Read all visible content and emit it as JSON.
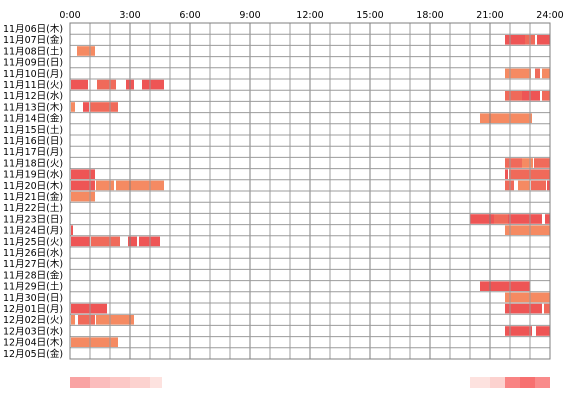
{
  "chart_data": {
    "type": "heatmap",
    "title": "",
    "x_unit": "hours",
    "x_range": [
      0,
      24
    ],
    "x_tick_labels": [
      "0:00",
      "3:00",
      "6:00",
      "9:00",
      "12:00",
      "15:00",
      "18:00",
      "21:00",
      "24:00"
    ],
    "grid": true,
    "rows": [
      {
        "label": "11月06日(木)",
        "segments": []
      },
      {
        "label": "11月07日(金)",
        "segments": [
          [
            21.75,
            22.75,
            "#ee5555"
          ],
          [
            22.75,
            23.25,
            "#f06a5a"
          ],
          [
            23.35,
            24.0,
            "#ee5555"
          ]
        ]
      },
      {
        "label": "11月08日(土)",
        "segments": [
          [
            0.35,
            1.25,
            "#f58a62"
          ]
        ]
      },
      {
        "label": "11月09日(日)",
        "segments": []
      },
      {
        "label": "11月10日(月)",
        "segments": [
          [
            21.75,
            23.05,
            "#f58a62"
          ],
          [
            23.25,
            23.5,
            "#f06a5a"
          ],
          [
            23.6,
            24.0,
            "#f58a62"
          ]
        ]
      },
      {
        "label": "11月11日(火)",
        "segments": [
          [
            0.05,
            0.9,
            "#ee5555"
          ],
          [
            1.35,
            2.3,
            "#f06a5a"
          ],
          [
            2.8,
            3.2,
            "#ee5555"
          ],
          [
            3.6,
            4.7,
            "#ee5555"
          ]
        ]
      },
      {
        "label": "11月12日(水)",
        "segments": [
          [
            21.75,
            22.6,
            "#f06a5a"
          ],
          [
            22.6,
            23.5,
            "#ee5555"
          ],
          [
            23.6,
            24.0,
            "#f06a5a"
          ]
        ]
      },
      {
        "label": "11月13日(木)",
        "segments": [
          [
            0.05,
            0.25,
            "#f58a62"
          ],
          [
            0.65,
            0.95,
            "#ee5555"
          ],
          [
            1.0,
            2.4,
            "#f06a5a"
          ]
        ]
      },
      {
        "label": "11月14日(金)",
        "segments": [
          [
            20.5,
            23.1,
            "#f58a62"
          ]
        ]
      },
      {
        "label": "11月15日(土)",
        "segments": []
      },
      {
        "label": "11月16日(日)",
        "segments": []
      },
      {
        "label": "11月17日(月)",
        "segments": []
      },
      {
        "label": "11月18日(火)",
        "segments": [
          [
            21.75,
            22.6,
            "#f06a5a"
          ],
          [
            22.6,
            23.15,
            "#f58a62"
          ],
          [
            23.2,
            24.0,
            "#f06a5a"
          ]
        ]
      },
      {
        "label": "11月19日(水)",
        "segments": [
          [
            0.05,
            1.25,
            "#ee5555"
          ],
          [
            21.75,
            21.9,
            "#ee5555"
          ],
          [
            21.95,
            24.0,
            "#f06a5a"
          ]
        ]
      },
      {
        "label": "11月20日(木)",
        "segments": [
          [
            0.05,
            1.25,
            "#ee5555"
          ],
          [
            1.3,
            2.2,
            "#f58a62"
          ],
          [
            2.3,
            4.7,
            "#f58a62"
          ],
          [
            21.75,
            22.2,
            "#f06a5a"
          ],
          [
            22.4,
            23.0,
            "#f58a62"
          ],
          [
            23.05,
            23.8,
            "#f06a5a"
          ],
          [
            23.85,
            24.0,
            "#ee5555"
          ]
        ]
      },
      {
        "label": "11月21日(金)",
        "segments": [
          [
            0.05,
            1.25,
            "#f58a62"
          ]
        ]
      },
      {
        "label": "11月22日(土)",
        "segments": []
      },
      {
        "label": "11月23日(日)",
        "segments": [
          [
            20.0,
            21.2,
            "#ee5555"
          ],
          [
            21.2,
            21.9,
            "#f06a5a"
          ],
          [
            21.9,
            23.6,
            "#ee5555"
          ],
          [
            23.75,
            24.0,
            "#ee5555"
          ]
        ]
      },
      {
        "label": "11月24日(月)",
        "segments": [
          [
            0.05,
            0.15,
            "#ee5555"
          ],
          [
            21.75,
            24.0,
            "#f58a62"
          ]
        ]
      },
      {
        "label": "11月25日(火)",
        "segments": [
          [
            0.05,
            1.0,
            "#ee5555"
          ],
          [
            1.05,
            2.5,
            "#f06a5a"
          ],
          [
            2.9,
            3.35,
            "#ee5555"
          ],
          [
            3.45,
            4.5,
            "#ee5555"
          ]
        ]
      },
      {
        "label": "11月26日(水)",
        "segments": []
      },
      {
        "label": "11月27日(木)",
        "segments": []
      },
      {
        "label": "11月28日(金)",
        "segments": []
      },
      {
        "label": "11月29日(土)",
        "segments": [
          [
            20.5,
            23.0,
            "#ee5555"
          ]
        ]
      },
      {
        "label": "11月30日(日)",
        "segments": [
          [
            21.75,
            24.0,
            "#f58a62"
          ]
        ]
      },
      {
        "label": "12月01日(月)",
        "segments": [
          [
            0.05,
            1.85,
            "#ee5555"
          ],
          [
            21.75,
            23.6,
            "#ee5555"
          ],
          [
            23.7,
            24.0,
            "#f06a5a"
          ]
        ]
      },
      {
        "label": "12月02日(火)",
        "segments": [
          [
            0.05,
            0.25,
            "#f58a62"
          ],
          [
            0.4,
            1.25,
            "#f06a5a"
          ],
          [
            1.3,
            3.2,
            "#f58a62"
          ]
        ]
      },
      {
        "label": "12月03日(水)",
        "segments": [
          [
            21.75,
            23.1,
            "#ee5555"
          ],
          [
            23.3,
            24.0,
            "#ee5555"
          ]
        ]
      },
      {
        "label": "12月04日(木)",
        "segments": [
          [
            0.05,
            2.4,
            "#f58a62"
          ]
        ]
      },
      {
        "label": "12月05日(金)",
        "segments": []
      }
    ],
    "density_bar": [
      [
        0.0,
        1.0,
        "#f9a3a3"
      ],
      [
        1.0,
        2.0,
        "#fbbdbd"
      ],
      [
        2.0,
        3.0,
        "#fcc8c6"
      ],
      [
        3.0,
        4.0,
        "#fcd2cf"
      ],
      [
        4.0,
        4.6,
        "#fde2df"
      ],
      [
        4.6,
        20.0,
        "#ffffff"
      ],
      [
        20.0,
        21.0,
        "#fde2df"
      ],
      [
        21.0,
        21.75,
        "#fcd2cf"
      ],
      [
        21.75,
        22.5,
        "#f98383"
      ],
      [
        22.5,
        23.25,
        "#f77070"
      ],
      [
        23.25,
        24.0,
        "#f98b8b"
      ]
    ]
  }
}
